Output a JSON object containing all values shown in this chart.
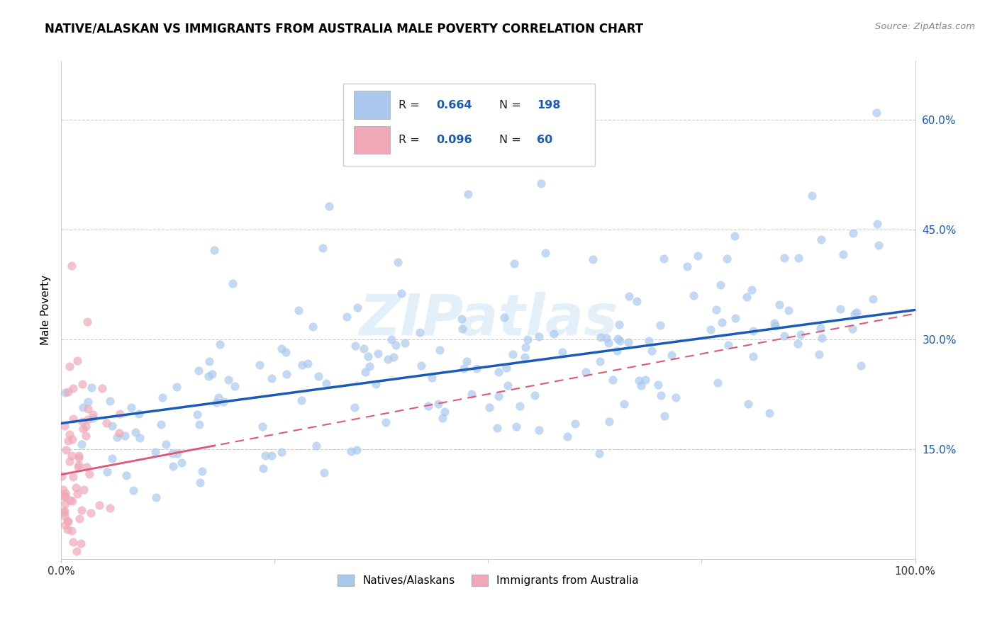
{
  "title": "NATIVE/ALASKAN VS IMMIGRANTS FROM AUSTRALIA MALE POVERTY CORRELATION CHART",
  "source": "Source: ZipAtlas.com",
  "ylabel": "Male Poverty",
  "yticks": [
    "15.0%",
    "30.0%",
    "45.0%",
    "60.0%"
  ],
  "ytick_vals": [
    0.15,
    0.3,
    0.45,
    0.6
  ],
  "xlim": [
    0.0,
    1.0
  ],
  "ylim": [
    0.0,
    0.68
  ],
  "legend_labels": [
    "Natives/Alaskans",
    "Immigrants from Australia"
  ],
  "R_blue": 0.664,
  "N_blue": 198,
  "R_pink": 0.096,
  "N_pink": 60,
  "blue_color": "#aac8ee",
  "pink_color": "#f0a8b8",
  "line_blue": "#1a5ab8",
  "line_pink": "#e05878",
  "watermark": "ZIPatlas",
  "title_fontsize": 12,
  "label_fontsize": 11,
  "blue_line_intercept": 0.185,
  "blue_line_slope": 0.155,
  "pink_line_intercept": 0.115,
  "pink_line_slope": 0.22
}
